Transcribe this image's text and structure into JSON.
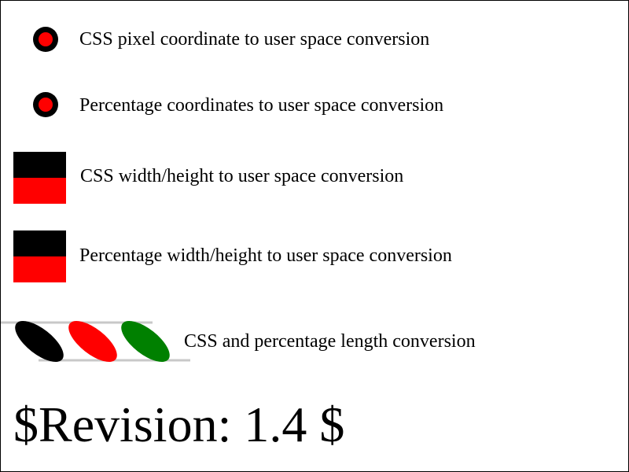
{
  "tests": [
    {
      "label": "CSS pixel coordinate to user space conversion"
    },
    {
      "label": "Percentage coordinates to user space conversion"
    },
    {
      "label": "CSS width/height to user space conversion"
    },
    {
      "label": "Percentage width/height to user space conversion"
    },
    {
      "label": "CSS and percentage length conversion"
    }
  ],
  "revision": "$Revision: 1.4 $",
  "colors": {
    "primary": "#000000",
    "highlight": "#ff0000",
    "green": "#008000",
    "line": "#c8c8c8"
  }
}
